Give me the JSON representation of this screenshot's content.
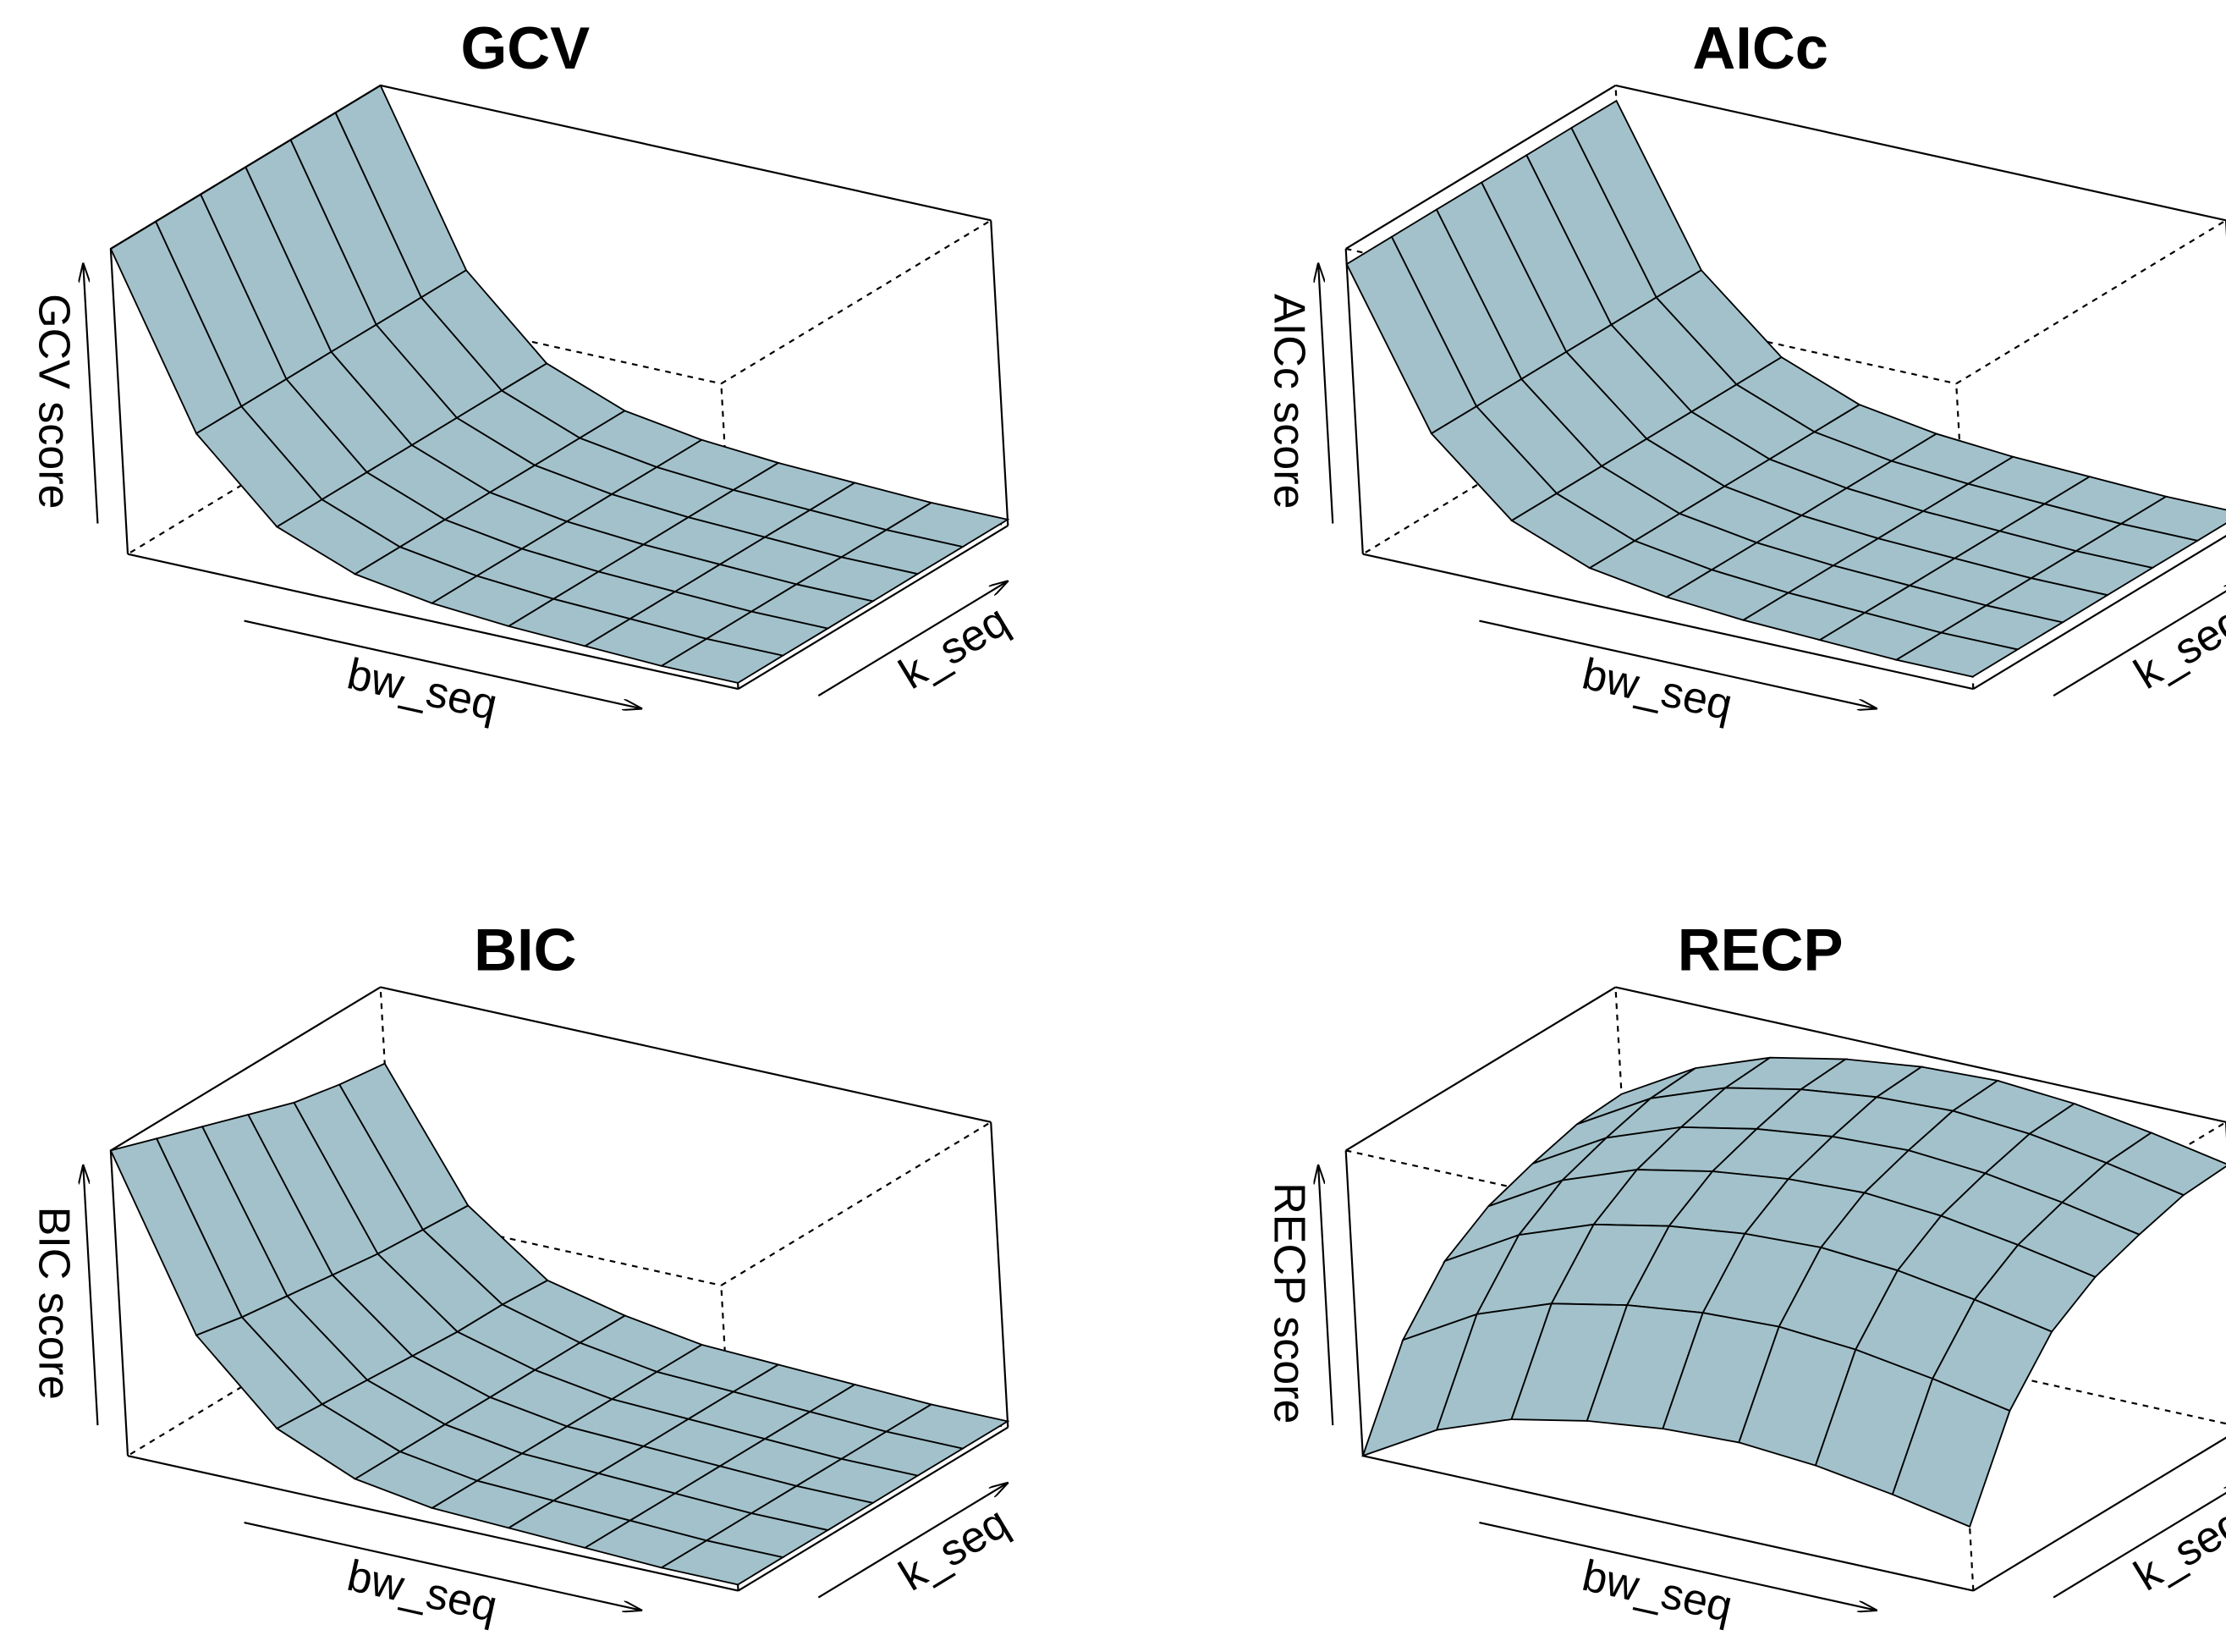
{
  "chart_data": [
    {
      "type": "surface",
      "title": "GCV",
      "xlabel": "bw_seq",
      "ylabel": "k_seq",
      "zlabel": "GCV score",
      "color": "#a2c1cb",
      "z": [
        [
          1,
          1,
          1,
          1,
          1,
          1,
          1
        ],
        [
          0.45,
          0.45,
          0.45,
          0.45,
          0.45,
          0.45,
          0.45
        ],
        [
          0.2,
          0.2,
          0.2,
          0.2,
          0.2,
          0.2,
          0.2
        ],
        [
          0.1,
          0.1,
          0.1,
          0.1,
          0.1,
          0.1,
          0.1
        ],
        [
          0.06,
          0.06,
          0.06,
          0.06,
          0.06,
          0.06,
          0.06
        ],
        [
          0.04,
          0.04,
          0.04,
          0.04,
          0.04,
          0.04,
          0.04
        ],
        [
          0.03,
          0.03,
          0.03,
          0.03,
          0.03,
          0.03,
          0.03
        ],
        [
          0.02,
          0.02,
          0.02,
          0.02,
          0.02,
          0.02,
          0.02
        ],
        [
          0.02,
          0.02,
          0.02,
          0.02,
          0.02,
          0.02,
          0.02
        ]
      ]
    },
    {
      "type": "surface",
      "title": "AICc",
      "xlabel": "bw_seq",
      "ylabel": "k_seq",
      "zlabel": "AICc score",
      "color": "#a2c1cb",
      "z": [
        [
          0.95,
          0.95,
          0.95,
          0.95,
          0.95,
          0.95,
          0.95
        ],
        [
          0.45,
          0.45,
          0.45,
          0.45,
          0.45,
          0.45,
          0.45
        ],
        [
          0.22,
          0.22,
          0.22,
          0.22,
          0.22,
          0.22,
          0.22
        ],
        [
          0.12,
          0.12,
          0.12,
          0.12,
          0.12,
          0.12,
          0.12
        ],
        [
          0.08,
          0.08,
          0.08,
          0.08,
          0.08,
          0.08,
          0.08
        ],
        [
          0.06,
          0.06,
          0.06,
          0.06,
          0.06,
          0.06,
          0.06
        ],
        [
          0.05,
          0.05,
          0.05,
          0.05,
          0.05,
          0.05,
          0.05
        ],
        [
          0.04,
          0.04,
          0.04,
          0.04,
          0.04,
          0.04,
          0.04
        ],
        [
          0.04,
          0.04,
          0.04,
          0.04,
          0.04,
          0.04,
          0.04
        ]
      ]
    },
    {
      "type": "surface",
      "title": "BIC",
      "xlabel": "bw_seq",
      "ylabel": "k_seq",
      "zlabel": "BIC score",
      "color": "#a2c1cb",
      "z": [
        [
          1,
          0.95,
          0.9,
          0.85,
          0.8,
          0.77,
          0.75
        ],
        [
          0.45,
          0.42,
          0.4,
          0.38,
          0.36,
          0.35,
          0.34
        ],
        [
          0.2,
          0.19,
          0.18,
          0.17,
          0.16,
          0.16,
          0.15
        ],
        [
          0.09,
          0.09,
          0.09,
          0.09,
          0.09,
          0.09,
          0.09
        ],
        [
          0.05,
          0.05,
          0.05,
          0.05,
          0.05,
          0.05,
          0.05
        ],
        [
          0.04,
          0.04,
          0.04,
          0.04,
          0.04,
          0.04,
          0.04
        ],
        [
          0.03,
          0.03,
          0.03,
          0.03,
          0.03,
          0.03,
          0.03
        ],
        [
          0.02,
          0.02,
          0.02,
          0.02,
          0.02,
          0.02,
          0.02
        ],
        [
          0.02,
          0.02,
          0.02,
          0.02,
          0.02,
          0.02,
          0.02
        ]
      ]
    },
    {
      "type": "surface",
      "title": "RECP",
      "xlabel": "bw_seq",
      "ylabel": "k_seq",
      "zlabel": "RECP score",
      "color": "#a2c1cb",
      "z": [
        [
          0,
          0.29,
          0.46,
          0.55,
          0.6,
          0.64,
          0.65
        ],
        [
          0.14,
          0.43,
          0.6,
          0.69,
          0.74,
          0.78,
          0.79
        ],
        [
          0.23,
          0.52,
          0.69,
          0.78,
          0.83,
          0.87,
          0.88
        ],
        [
          0.28,
          0.57,
          0.74,
          0.83,
          0.88,
          0.92,
          0.93
        ],
        [
          0.31,
          0.6,
          0.77,
          0.86,
          0.91,
          0.95,
          0.96
        ],
        [
          0.32,
          0.61,
          0.78,
          0.87,
          0.92,
          0.96,
          0.97
        ],
        [
          0.3,
          0.59,
          0.76,
          0.85,
          0.9,
          0.94,
          0.95
        ],
        [
          0.26,
          0.55,
          0.72,
          0.81,
          0.86,
          0.9,
          0.91
        ],
        [
          0.21,
          0.5,
          0.67,
          0.76,
          0.81,
          0.85,
          0.86
        ]
      ]
    }
  ]
}
